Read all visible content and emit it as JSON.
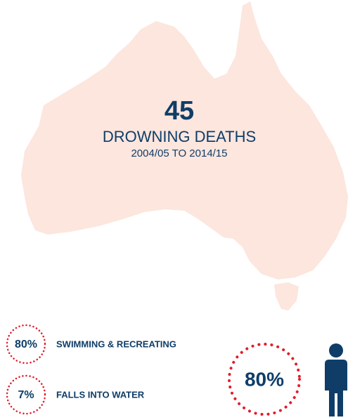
{
  "headline": {
    "number": "45",
    "label": "DROWNING DEATHS",
    "period": "2004/05 TO 2014/15"
  },
  "activities": [
    {
      "percent": "80%",
      "label": "SWIMMING & RECREATING"
    },
    {
      "percent": "7%",
      "label": "FALLS INTO WATER"
    }
  ],
  "gender": {
    "percent": "80%"
  }
}
